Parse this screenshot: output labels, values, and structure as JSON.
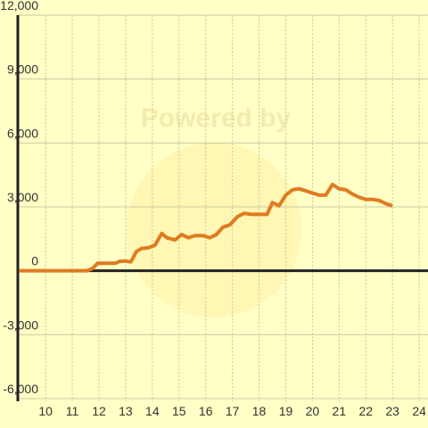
{
  "chart_data": {
    "type": "line",
    "watermark": "Powered by",
    "xlim": [
      8.96,
      24.33
    ],
    "ylim": [
      -6000,
      12000
    ],
    "xticks": [
      10,
      11,
      12,
      13,
      14,
      15,
      16,
      17,
      18,
      19,
      20,
      21,
      22,
      23,
      24
    ],
    "yticks": [
      {
        "value": -6000,
        "label": "-6,000"
      },
      {
        "value": -3000,
        "label": "-3,000"
      },
      0,
      {
        "value": 3000,
        "label": "3,000"
      },
      {
        "value": 6000,
        "label": "6,000"
      },
      {
        "value": 9000,
        "label": "9,000"
      },
      {
        "value": 12000,
        "label": "12,000"
      }
    ],
    "grid": true,
    "series": [
      {
        "color": "#e07b20",
        "x": [
          9,
          11.55,
          11.75,
          11.95,
          12.3,
          12.6,
          12.8,
          13.0,
          13.2,
          13.4,
          13.6,
          13.85,
          14.1,
          14.35,
          14.55,
          14.85,
          15.1,
          15.35,
          15.6,
          15.9,
          16.15,
          16.4,
          16.65,
          16.9,
          17.2,
          17.45,
          17.7,
          18.0,
          18.3,
          18.5,
          18.75,
          19.0,
          19.25,
          19.5,
          19.75,
          20.0,
          20.25,
          20.5,
          20.75,
          21.0,
          21.25,
          21.5,
          21.75,
          22.0,
          22.25,
          22.5,
          22.75,
          23.0
        ],
        "values": [
          0,
          0,
          100,
          350,
          350,
          350,
          450,
          450,
          420,
          900,
          1050,
          1080,
          1200,
          1750,
          1550,
          1450,
          1700,
          1550,
          1650,
          1650,
          1550,
          1700,
          2050,
          2150,
          2550,
          2700,
          2650,
          2650,
          2650,
          3200,
          3050,
          3550,
          3800,
          3850,
          3750,
          3650,
          3550,
          3550,
          4050,
          3850,
          3800,
          3600,
          3450,
          3350,
          3350,
          3300,
          3150,
          3050
        ]
      }
    ]
  }
}
